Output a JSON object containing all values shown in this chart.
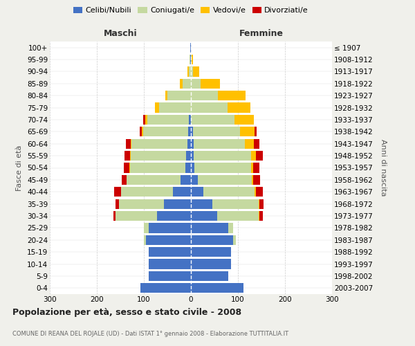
{
  "age_groups": [
    "0-4",
    "5-9",
    "10-14",
    "15-19",
    "20-24",
    "25-29",
    "30-34",
    "35-39",
    "40-44",
    "45-49",
    "50-54",
    "55-59",
    "60-64",
    "65-69",
    "70-74",
    "75-79",
    "80-84",
    "85-89",
    "90-94",
    "95-99",
    "100+"
  ],
  "birth_years": [
    "2003-2007",
    "1998-2002",
    "1993-1997",
    "1988-1992",
    "1983-1987",
    "1978-1982",
    "1973-1977",
    "1968-1972",
    "1963-1967",
    "1958-1962",
    "1953-1957",
    "1948-1952",
    "1943-1947",
    "1938-1942",
    "1933-1937",
    "1928-1932",
    "1923-1927",
    "1918-1922",
    "1913-1917",
    "1908-1912",
    "≤ 1907"
  ],
  "male_celibi": [
    108,
    90,
    90,
    90,
    95,
    90,
    72,
    58,
    38,
    22,
    12,
    10,
    8,
    6,
    4,
    0,
    0,
    0,
    0,
    1,
    1
  ],
  "male_coniugati": [
    0,
    0,
    0,
    0,
    5,
    10,
    88,
    95,
    110,
    115,
    118,
    118,
    118,
    95,
    88,
    68,
    50,
    18,
    5,
    2,
    1
  ],
  "male_vedovi": [
    0,
    0,
    0,
    0,
    0,
    0,
    0,
    0,
    0,
    0,
    1,
    1,
    2,
    3,
    5,
    8,
    5,
    5,
    2,
    0,
    0
  ],
  "male_divorziati": [
    0,
    0,
    0,
    0,
    0,
    0,
    5,
    8,
    15,
    10,
    12,
    12,
    10,
    5,
    5,
    0,
    0,
    0,
    0,
    0,
    0
  ],
  "female_nubili": [
    112,
    80,
    85,
    85,
    90,
    80,
    56,
    46,
    26,
    14,
    8,
    6,
    6,
    4,
    0,
    0,
    0,
    0,
    0,
    0,
    0
  ],
  "female_coniugate": [
    0,
    0,
    0,
    0,
    5,
    10,
    88,
    98,
    110,
    115,
    120,
    122,
    108,
    100,
    92,
    78,
    58,
    20,
    5,
    2,
    0
  ],
  "female_vedove": [
    0,
    0,
    0,
    0,
    0,
    0,
    1,
    1,
    2,
    3,
    5,
    10,
    20,
    32,
    42,
    48,
    58,
    42,
    12,
    2,
    0
  ],
  "female_divorziate": [
    0,
    0,
    0,
    0,
    0,
    0,
    8,
    10,
    15,
    15,
    12,
    15,
    12,
    3,
    0,
    0,
    0,
    0,
    0,
    0,
    0
  ],
  "colors_celibi": "#4472c4",
  "colors_coniugati": "#c5d9a0",
  "colors_vedovi": "#ffc000",
  "colors_divorziati": "#cc0000",
  "title": "Popolazione per età, sesso e stato civile - 2008",
  "subtitle": "COMUNE DI REANA DEL ROJALE (UD) - Dati ISTAT 1° gennaio 2008 - Elaborazione TUTTITALIA.IT",
  "xlim": 300,
  "bg_color": "#f0f0eb",
  "plot_bg": "#ffffff"
}
